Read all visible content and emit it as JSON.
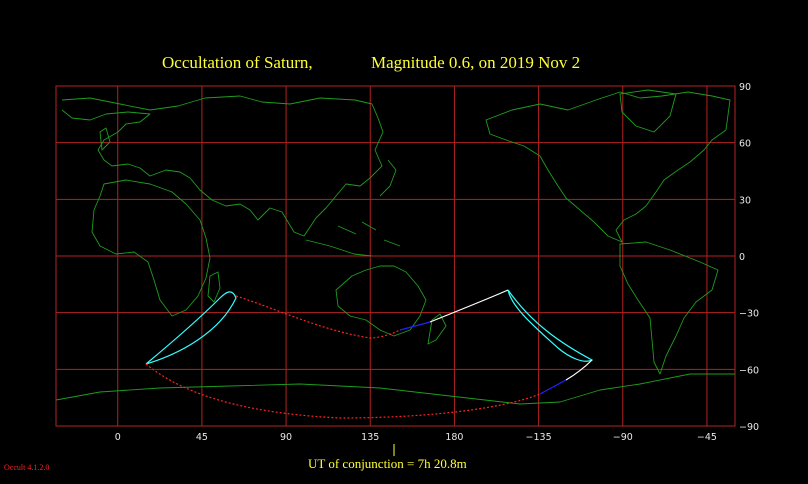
{
  "header": {
    "title_part1": "Occultation  of  Saturn,",
    "title_part2": "Magnitude 0.6,   on  2019 Nov  2"
  },
  "axes": {
    "x_ticks": [
      "0",
      "45",
      "90",
      "135",
      "180",
      "−135",
      "−90",
      "−45"
    ],
    "x_values": [
      0,
      45,
      90,
      135,
      180,
      225,
      270,
      315
    ],
    "y_ticks": [
      "90",
      "60",
      "30",
      "0",
      "−30",
      "−60",
      "−90"
    ],
    "y_values": [
      90,
      60,
      30,
      0,
      -30,
      -60,
      -90
    ],
    "lon_range": [
      -33,
      330
    ],
    "lat_range": [
      -90,
      90
    ]
  },
  "footer": {
    "conjunction_label": "UT of conjunction =  7h 20.8m",
    "version": "Occult 4.1.2.0"
  },
  "colors": {
    "background": "#000000",
    "title": "#ffff33",
    "grid": "#b22222",
    "coast": "#1f9d1f",
    "limits": "#33ffff",
    "track_day": "#ffffff",
    "track_twilight": "#2222ff",
    "track_night": "#ff2222"
  }
}
